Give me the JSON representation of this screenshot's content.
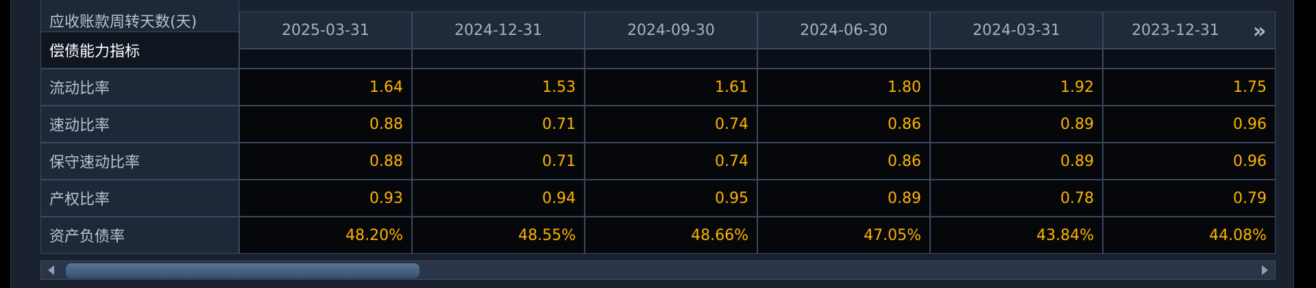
{
  "table": {
    "cut_row_label": "应收账款周转天数(天)",
    "section_label": "偿债能力指标",
    "columns": [
      "2025-03-31",
      "2024-12-31",
      "2024-09-30",
      "2024-06-30",
      "2024-03-31",
      "2023-12-31"
    ],
    "rows": [
      {
        "label": "流动比率",
        "values": [
          "1.64",
          "1.53",
          "1.61",
          "1.80",
          "1.92",
          "1.75"
        ]
      },
      {
        "label": "速动比率",
        "values": [
          "0.88",
          "0.71",
          "0.74",
          "0.86",
          "0.89",
          "0.96"
        ]
      },
      {
        "label": "保守速动比率",
        "values": [
          "0.88",
          "0.71",
          "0.74",
          "0.86",
          "0.89",
          "0.96"
        ]
      },
      {
        "label": "产权比率",
        "values": [
          "0.93",
          "0.94",
          "0.95",
          "0.89",
          "0.78",
          "0.79"
        ]
      },
      {
        "label": "资产负债率",
        "values": [
          "48.20%",
          "48.55%",
          "48.66%",
          "47.05%",
          "43.84%",
          "44.08%"
        ]
      }
    ]
  }
}
